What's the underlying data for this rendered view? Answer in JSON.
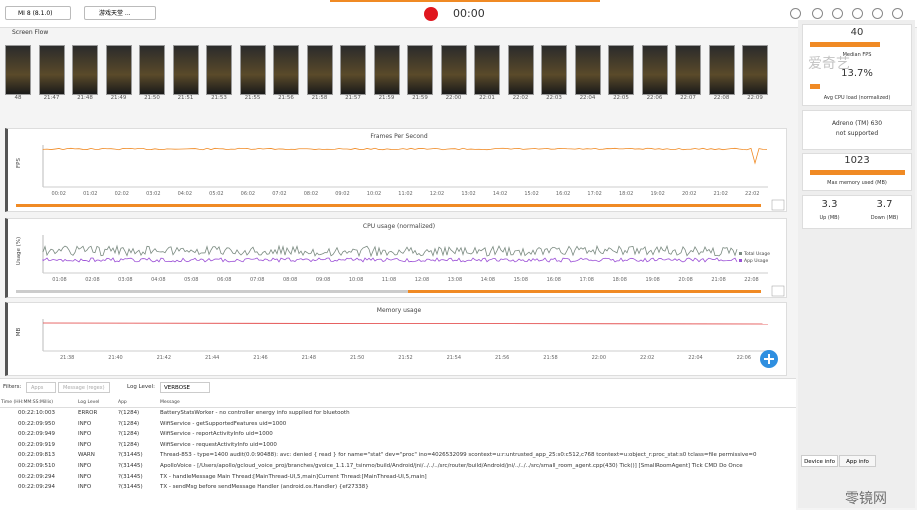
{
  "toolbar": {
    "device": "MI 8 (8.1.0)",
    "app": "游戏天堂 ...",
    "timer": "00:00"
  },
  "screen_flow": {
    "title": "Screen Flow",
    "times": [
      "48",
      "21:47",
      "21:48",
      "21:49",
      "21:50",
      "21:51",
      "21:53",
      "21:55",
      "21:56",
      "21:58",
      "21:57",
      "21:59",
      "21:59",
      "22:00",
      "22:01",
      "22:02",
      "22:03",
      "22:04",
      "22:05",
      "22:06",
      "22:07",
      "22:08",
      "22:09"
    ]
  },
  "charts": [
    {
      "title": "Frames Per Second",
      "y_label": "FPS",
      "x_labels": [
        "00:02",
        "01:02",
        "02:02",
        "03:02",
        "04:02",
        "05:02",
        "06:02",
        "07:02",
        "08:02",
        "09:02",
        "10:02",
        "11:02",
        "12:02",
        "13:02",
        "14:02",
        "15:02",
        "16:02",
        "17:02",
        "18:02",
        "19:02",
        "20:02",
        "21:02",
        "22:02"
      ]
    },
    {
      "title": "CPU usage (normalized)",
      "y_label": "Usage (%)",
      "x_labels": [
        "01:08",
        "02:08",
        "03:08",
        "04:08",
        "05:08",
        "06:08",
        "07:08",
        "08:08",
        "09:08",
        "10:08",
        "11:08",
        "12:08",
        "13:08",
        "14:08",
        "15:08",
        "16:08",
        "17:08",
        "18:08",
        "19:08",
        "20:08",
        "21:08",
        "22:08"
      ],
      "legend": [
        "Total Usage",
        "App Usage"
      ]
    },
    {
      "title": "Memory usage",
      "y_label": "MB",
      "x_labels": [
        "21:38",
        "21:40",
        "21:42",
        "21:44",
        "21:46",
        "21:48",
        "21:50",
        "21:52",
        "21:54",
        "21:56",
        "21:58",
        "22:00",
        "22:02",
        "22:04",
        "22:06"
      ]
    }
  ],
  "stats": {
    "fps": "40",
    "fps_label": "Median FPS",
    "cpu": "13.7%",
    "cpu_label": "Avg CPU load (normalized)",
    "gpu": "Adreno (TM) 630",
    "gpu_note": "not supported",
    "mem": "1023",
    "mem_label": "Max memory used (MB)",
    "up": "3.3",
    "up_label": "Up (MB)",
    "down": "3.7",
    "down_label": "Down (MB)"
  },
  "tabs": [
    "Device info",
    "App info"
  ],
  "log": {
    "filters_label": "Filters:",
    "filter_placeholders": [
      "Apps",
      "Message (regex)"
    ],
    "level_label": "Log Level:",
    "level": "VERBOSE",
    "columns": [
      "Time (HH:MM:SS:Millis)",
      "Log Level",
      "App",
      "Message"
    ],
    "rows": [
      [
        "00:22:10:003",
        "ERROR",
        "?(1284)",
        "BatteryStatsWorker - no controller energy info supplied for bluetooth"
      ],
      [
        "00:22:09:950",
        "INFO",
        "?(1284)",
        "WifiService - getSupportedFeatures uid=1000"
      ],
      [
        "00:22:09:949",
        "INFO",
        "?(1284)",
        "WifiService - reportActivityInfo uid=1000"
      ],
      [
        "00:22:09:919",
        "INFO",
        "?(1284)",
        "WifiService - requestActivityInfo uid=1000"
      ],
      [
        "00:22:09:813",
        "WARN",
        "?(31445)",
        "Thread-853 - type=1400 audit(0.0:90488): avc: denied { read } for name=\"stat\" dev=\"proc\" ino=4026532099 scontext=u:r:untrusted_app_25:s0:c512,c768 tcontext=u:object_r:proc_stat:s0 tclass=file permissive=0"
      ],
      [
        "00:22:09:510",
        "INFO",
        "?(31445)",
        "ApolloVoice - [/Users/apollo/gcloud_voice_proj/branches/gvoice_1.1.17_tsinmo/build/Android/jni/../../../src/router/build/Android/jni/../../../src/small_room_agent.cpp(430) Tick()] [SmallRoomAgent] Tick CMD Do Once"
      ],
      [
        "00:22:09:294",
        "INFO",
        "?(31445)",
        "TX - handleMessage Main Thread:[MainThread-UI,5,main]Current Thread:[MainThread-UI,5,main]"
      ],
      [
        "00:22:09:294",
        "INFO",
        "?(31445)",
        "TX - sendMsg before sendMessage Handler (android.os.Handler) {ef27338}"
      ]
    ]
  },
  "watermarks": [
    "爱奇艺",
    "零镜网"
  ]
}
